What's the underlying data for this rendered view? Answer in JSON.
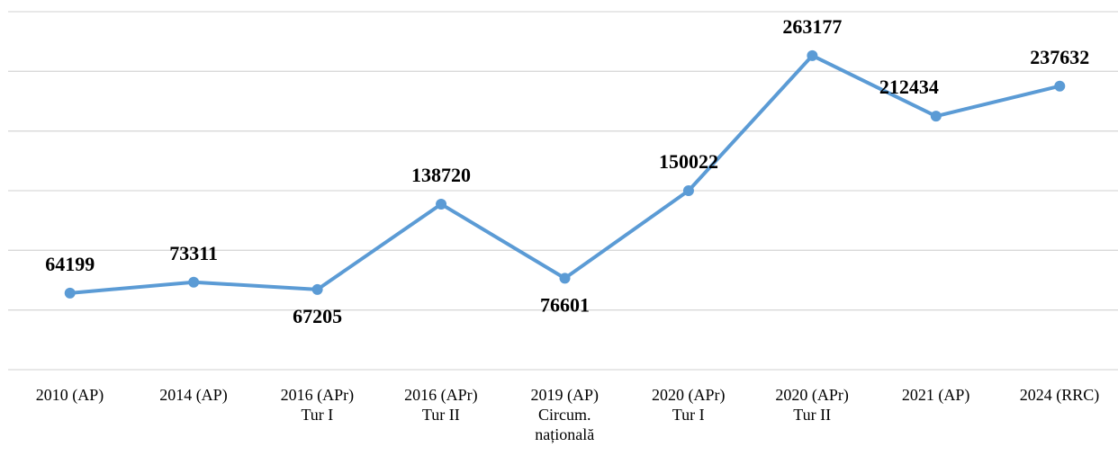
{
  "chart_data": {
    "type": "line",
    "categories": [
      "2010 (AP)",
      "2014 (AP)",
      "2016 (APr)\nTur I",
      "2016 (APr)\nTur II",
      "2019 (AP)\nCircum.\nnațională",
      "2020 (APr)\nTur I",
      "2020 (APr)\nTur II",
      "2021 (AP)",
      "2024 (RRC)"
    ],
    "series": [
      {
        "color": "#5b9bd5",
        "values": [
          64199,
          73311,
          67205,
          138720,
          76601,
          150022,
          263177,
          212434,
          237632
        ]
      }
    ],
    "ylim": [
      0,
      300000
    ],
    "yticks": [
      0,
      50000,
      100000,
      150000,
      200000,
      250000,
      300000
    ],
    "grid": true
  }
}
